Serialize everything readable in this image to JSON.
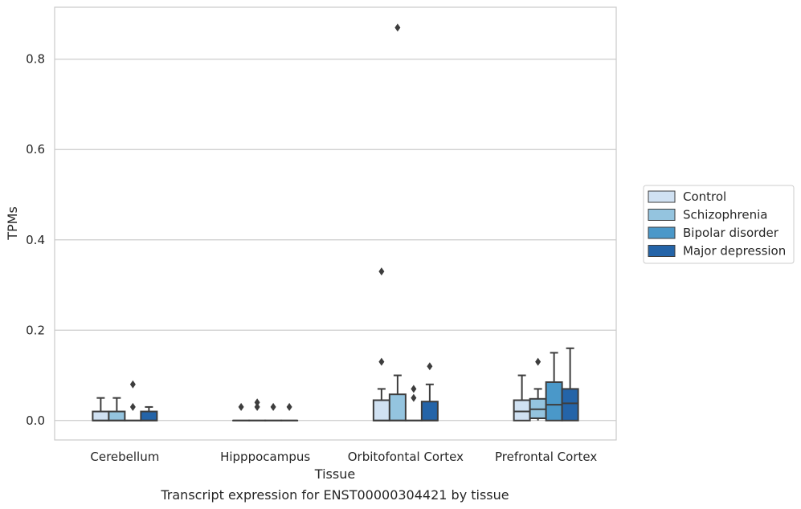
{
  "caption": "Transcript expression for ENST00000304421 by tissue",
  "chart_data": {
    "type": "box",
    "xlabel": "Tissue",
    "ylabel": "TPMs",
    "categories": [
      "Cerebellum",
      "Hipppocampus",
      "Orbitofontal Cortex",
      "Prefrontal Cortex"
    ],
    "ylim": [
      -0.043,
      0.915
    ],
    "yticks": [
      "0.0",
      "0.2",
      "0.4",
      "0.6",
      "0.8"
    ],
    "ytick_values": [
      0.0,
      0.2,
      0.4,
      0.6,
      0.8
    ],
    "grid": "horizontal",
    "legend_position": "right",
    "series": [
      {
        "name": "Control",
        "color": "#d0e1f2",
        "boxes": [
          {
            "q1": 0.0,
            "median": 0.0,
            "q3": 0.02,
            "whisker_low": 0.0,
            "whisker_high": 0.05,
            "outliers": []
          },
          {
            "q1": 0.0,
            "median": 0.0,
            "q3": 0.0,
            "whisker_low": 0.0,
            "whisker_high": 0.0,
            "outliers": [
              0.03
            ]
          },
          {
            "q1": 0.0,
            "median": 0.0,
            "q3": 0.045,
            "whisker_low": 0.0,
            "whisker_high": 0.07,
            "outliers": [
              0.13,
              0.33
            ]
          },
          {
            "q1": 0.0,
            "median": 0.02,
            "q3": 0.045,
            "whisker_low": 0.0,
            "whisker_high": 0.1,
            "outliers": []
          }
        ]
      },
      {
        "name": "Schizophrenia",
        "color": "#94c4df",
        "boxes": [
          {
            "q1": 0.0,
            "median": 0.0,
            "q3": 0.02,
            "whisker_low": 0.0,
            "whisker_high": 0.05,
            "outliers": []
          },
          {
            "q1": 0.0,
            "median": 0.0,
            "q3": 0.0,
            "whisker_low": 0.0,
            "whisker_high": 0.0,
            "outliers": [
              0.03,
              0.04
            ]
          },
          {
            "q1": 0.0,
            "median": 0.0,
            "q3": 0.058,
            "whisker_low": 0.0,
            "whisker_high": 0.1,
            "outliers": [
              0.87
            ]
          },
          {
            "q1": 0.005,
            "median": 0.025,
            "q3": 0.048,
            "whisker_low": 0.0,
            "whisker_high": 0.07,
            "outliers": [
              0.13
            ]
          }
        ]
      },
      {
        "name": "Bipolar disorder",
        "color": "#4a98c9",
        "boxes": [
          {
            "q1": 0.0,
            "median": 0.0,
            "q3": 0.0,
            "whisker_low": 0.0,
            "whisker_high": 0.0,
            "outliers": [
              0.03,
              0.08
            ]
          },
          {
            "q1": 0.0,
            "median": 0.0,
            "q3": 0.0,
            "whisker_low": 0.0,
            "whisker_high": 0.0,
            "outliers": [
              0.03
            ]
          },
          {
            "q1": 0.0,
            "median": 0.0,
            "q3": 0.0,
            "whisker_low": 0.0,
            "whisker_high": 0.0,
            "outliers": [
              0.05,
              0.07
            ]
          },
          {
            "q1": 0.0,
            "median": 0.035,
            "q3": 0.085,
            "whisker_low": 0.0,
            "whisker_high": 0.15,
            "outliers": []
          }
        ]
      },
      {
        "name": "Major depression",
        "color": "#2464a8",
        "boxes": [
          {
            "q1": 0.0,
            "median": 0.0,
            "q3": 0.02,
            "whisker_low": 0.0,
            "whisker_high": 0.03,
            "outliers": []
          },
          {
            "q1": 0.0,
            "median": 0.0,
            "q3": 0.0,
            "whisker_low": 0.0,
            "whisker_high": 0.0,
            "outliers": [
              0.03
            ]
          },
          {
            "q1": 0.0,
            "median": 0.0,
            "q3": 0.042,
            "whisker_low": 0.0,
            "whisker_high": 0.08,
            "outliers": [
              0.12
            ]
          },
          {
            "q1": 0.0,
            "median": 0.038,
            "q3": 0.07,
            "whisker_low": 0.0,
            "whisker_high": 0.16,
            "outliers": []
          }
        ]
      }
    ]
  }
}
